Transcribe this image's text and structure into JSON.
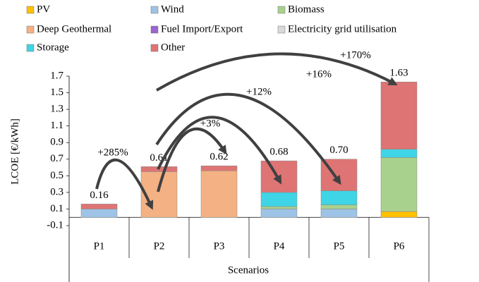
{
  "chart_data": {
    "type": "stacked_bar",
    "categories": [
      "P1",
      "P2",
      "P3",
      "P4",
      "P5",
      "P6"
    ],
    "series": [
      {
        "name": "PV",
        "color": "#ffc000",
        "values": [
          null,
          null,
          null,
          null,
          null,
          0.07
        ]
      },
      {
        "name": "Wind",
        "color": "#9dc3e6",
        "values": [
          0.1,
          null,
          null,
          0.1,
          0.1,
          null
        ]
      },
      {
        "name": "Biomass",
        "color": "#a9d18e",
        "values": [
          null,
          null,
          null,
          0.03,
          0.05,
          0.65
        ]
      },
      {
        "name": "Deep Geothermal",
        "color": "#f4b183",
        "values": [
          null,
          0.55,
          0.56,
          null,
          null,
          null
        ]
      },
      {
        "name": "Fuel Import/Export",
        "color": "#9966cc",
        "values": [
          null,
          null,
          null,
          null,
          null,
          null
        ]
      },
      {
        "name": "Electricity grid utilisation",
        "color": "#d9d9d9",
        "values": [
          null,
          null,
          null,
          null,
          null,
          null
        ]
      },
      {
        "name": "Storage",
        "color": "#3fd4e6",
        "values": [
          null,
          null,
          null,
          0.17,
          0.17,
          0.1
        ]
      },
      {
        "name": "Other",
        "color": "#de7474",
        "values": [
          0.06,
          0.06,
          0.06,
          0.38,
          0.38,
          0.81
        ]
      }
    ],
    "totals": [
      0.16,
      0.61,
      0.62,
      0.68,
      0.7,
      1.63
    ],
    "totals_labels": [
      "0.16",
      "0.61",
      "0.62",
      "0.68",
      "0.70",
      "1.63"
    ],
    "annotations": [
      "+285%",
      "+3%",
      "+12%",
      "+16%",
      "+170%"
    ],
    "ylabel": "LCOE [€/kWh]",
    "xlabel": "Scenarios",
    "ylim": [
      -0.1,
      1.7
    ],
    "yticks": [
      -0.1,
      0.1,
      0.3,
      0.5,
      0.7,
      0.9,
      1.1,
      1.3,
      1.5,
      1.7
    ]
  }
}
